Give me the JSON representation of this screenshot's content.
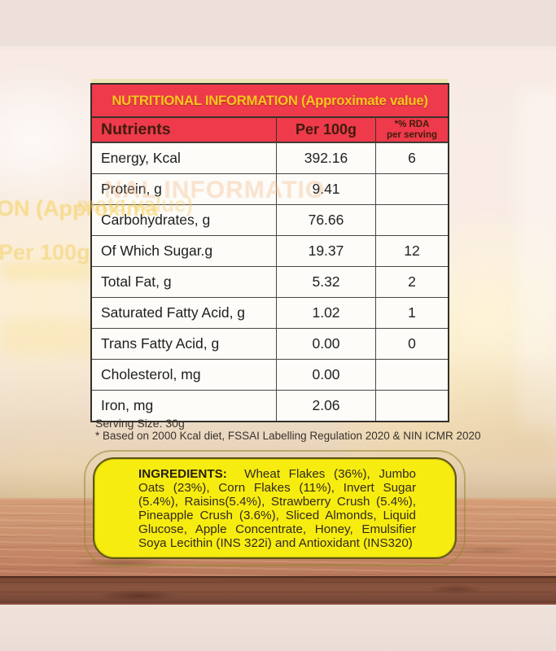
{
  "colors": {
    "header_red": "#ee3a4b",
    "title_yellow": "#f6c71d",
    "ingredients_box_yellow": "#f7ec10",
    "ingredients_box_border": "#5c5713",
    "ghost_yellow": "#f5c93e"
  },
  "table": {
    "title": "NUTRITIONAL INFORMATION (Approximate value)",
    "columns": {
      "nutrients": "Nutrients",
      "per_100g": "Per 100g",
      "rda_line1": "*% RDA",
      "rda_line2": "per serving"
    },
    "rows": [
      {
        "name": "Energy, Kcal",
        "per100g": "392.16",
        "rda": "6"
      },
      {
        "name": "Protein, g",
        "per100g": "9.41",
        "rda": ""
      },
      {
        "name": "Carbohydrates, g",
        "per100g": "76.66",
        "rda": ""
      },
      {
        "name": "Of Which Sugar.g",
        "per100g": "19.37",
        "rda": "12"
      },
      {
        "name": "Total Fat, g",
        "per100g": "5.32",
        "rda": "2"
      },
      {
        "name": "Saturated Fatty Acid, g",
        "per100g": "1.02",
        "rda": "1"
      },
      {
        "name": "Trans Fatty Acid, g",
        "per100g": "0.00",
        "rda": "0"
      },
      {
        "name": "Cholesterol, mg",
        "per100g": "0.00",
        "rda": ""
      },
      {
        "name": "Iron, mg",
        "per100g": "2.06",
        "rda": ""
      }
    ]
  },
  "footnotes": {
    "serving_size": "Serving Size: 30g",
    "basis": "* Based on 2000 Kcal diet, FSSAI Labelling Regulation 2020 & NIN ICMR 2020"
  },
  "ingredients": {
    "label": "INGREDIENTS:",
    "text": "Wheat Flakes (36%), Jumbo Oats (23%), Corn Flakes (11%), Invert Sugar (5.4%), Raisins(5.4%), Strawberry Crush (5.4%), Pineapple Crush (3.6%), Sliced Almonds, Liquid Glucose, Apple Concentrate, Honey, Emulsifier Soya Lecithin (INS 322i) and Antioxidant (INS320)"
  },
  "ghost_text": {
    "fragment1": "NAL INFORMATIO",
    "fragment2": "ON (Approxima",
    "fragment3": "mate value)",
    "fragment4": "Per 100g"
  }
}
